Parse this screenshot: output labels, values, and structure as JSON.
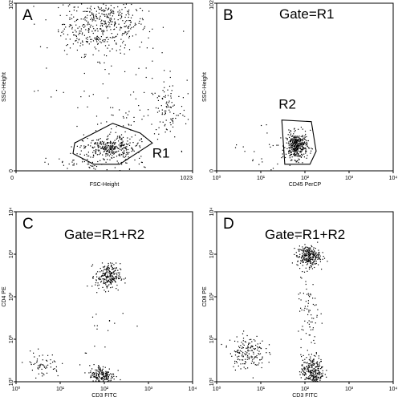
{
  "chart_data": [
    {
      "id": "A",
      "type": "scatter",
      "panel_label": "A",
      "gate_label": "",
      "xlabel": "FSC-Height",
      "ylabel": "SSC-Height",
      "xscale": "linear",
      "yscale": "linear",
      "xlim": [
        0,
        1023
      ],
      "ylim": [
        0,
        1023
      ],
      "x_ticks": [
        {
          "v": 0,
          "label": "0"
        },
        {
          "v": 1023,
          "label": "1023"
        }
      ],
      "y_ticks": [
        {
          "v": 0,
          "label": "0"
        },
        {
          "v": 1023,
          "label": "1023"
        }
      ],
      "clusters": [
        {
          "cx": 520,
          "cy": 900,
          "sx": 120,
          "sy": 90,
          "n": 380
        },
        {
          "cx": 380,
          "cy": 830,
          "sx": 90,
          "sy": 80,
          "n": 70
        },
        {
          "cx": 610,
          "cy": 130,
          "sx": 90,
          "sy": 140,
          "n": 120
        },
        {
          "cx": 880,
          "cy": 370,
          "sx": 55,
          "sy": 90,
          "n": 90
        },
        {
          "cx": 540,
          "cy": 140,
          "sx": 75,
          "sy": 30,
          "n": 260
        },
        {
          "cx": 400,
          "cy": 40,
          "sx": 120,
          "sy": 30,
          "n": 60
        },
        {
          "cx": 620,
          "cy": 500,
          "sx": 300,
          "sy": 250,
          "n": 80
        }
      ],
      "regions": [
        {
          "name": "R1",
          "label": "R1",
          "polygon": [
            [
              340,
              170
            ],
            [
              560,
              290
            ],
            [
              720,
              230
            ],
            [
              790,
              170
            ],
            [
              600,
              40
            ],
            [
              450,
              40
            ],
            [
              330,
              105
            ]
          ],
          "label_at": [
            840,
            80
          ]
        }
      ]
    },
    {
      "id": "B",
      "type": "scatter",
      "panel_label": "B",
      "gate_label": "Gate=R1",
      "xlabel": "CD45 PerCP",
      "ylabel": "SSC-Height",
      "xscale": "log",
      "yscale": "linear",
      "xlim": [
        1,
        10000
      ],
      "ylim": [
        0,
        1023
      ],
      "x_ticks": [
        {
          "v": 1,
          "label": "10⁰"
        },
        {
          "v": 10,
          "label": "10¹"
        },
        {
          "v": 100,
          "label": "10²"
        },
        {
          "v": 1000,
          "label": "10³"
        },
        {
          "v": 10000,
          "label": "10⁴"
        }
      ],
      "y_ticks": [
        {
          "v": 0,
          "label": "0"
        },
        {
          "v": 1023,
          "label": "1023"
        }
      ],
      "clusters": [
        {
          "cx": 65,
          "cy": 150,
          "sx": 0.12,
          "sy": 40,
          "n": 380,
          "logx": true
        },
        {
          "cx": 15,
          "cy": 140,
          "sx": 0.45,
          "sy": 90,
          "n": 25,
          "logx": true
        }
      ],
      "regions": [
        {
          "name": "R2",
          "label": "R2",
          "polygon": [
            [
              30,
              310
            ],
            [
              140,
              300
            ],
            [
              180,
              120
            ],
            [
              130,
              40
            ],
            [
              35,
              40
            ]
          ],
          "label_at": [
            40,
            380
          ]
        }
      ]
    },
    {
      "id": "C",
      "type": "scatter",
      "panel_label": "C",
      "gate_label": "Gate=R1+R2",
      "xlabel": "CD3 FITC",
      "ylabel": "CD4 PE",
      "xscale": "log",
      "yscale": "log",
      "xlim": [
        1,
        10000
      ],
      "ylim": [
        1,
        10000
      ],
      "x_ticks": [
        {
          "v": 1,
          "label": "10⁰"
        },
        {
          "v": 10,
          "label": "10¹"
        },
        {
          "v": 100,
          "label": "10²"
        },
        {
          "v": 1000,
          "label": "10³"
        },
        {
          "v": 10000,
          "label": "10⁴"
        }
      ],
      "y_ticks": [
        {
          "v": 1,
          "label": "10⁰"
        },
        {
          "v": 10,
          "label": "10¹"
        },
        {
          "v": 100,
          "label": "10²"
        },
        {
          "v": 1000,
          "label": "10³"
        },
        {
          "v": 10000,
          "label": "10⁴"
        }
      ],
      "clusters": [
        {
          "cx": 120,
          "cy": 300,
          "sx": 0.14,
          "sy": 0.15,
          "n": 220,
          "logx": true,
          "logy": true
        },
        {
          "cx": 90,
          "cy": 1.4,
          "sx": 0.15,
          "sy": 0.12,
          "n": 180,
          "logx": true,
          "logy": true
        },
        {
          "cx": 4,
          "cy": 2.5,
          "sx": 0.2,
          "sy": 0.15,
          "n": 60,
          "logx": true,
          "logy": true
        },
        {
          "cx": 80,
          "cy": 20,
          "sx": 0.4,
          "sy": 0.6,
          "n": 20,
          "logx": true,
          "logy": true
        }
      ],
      "regions": []
    },
    {
      "id": "D",
      "type": "scatter",
      "panel_label": "D",
      "gate_label": "Gate=R1+R2",
      "xlabel": "CD3 FITC",
      "ylabel": "CD8 PE",
      "xscale": "log",
      "yscale": "log",
      "xlim": [
        1,
        10000
      ],
      "ylim": [
        1,
        10000
      ],
      "x_ticks": [
        {
          "v": 1,
          "label": "10⁰"
        },
        {
          "v": 10,
          "label": "10¹"
        },
        {
          "v": 100,
          "label": "10²"
        },
        {
          "v": 1000,
          "label": "10³"
        },
        {
          "v": 10000,
          "label": "10⁴"
        }
      ],
      "y_ticks": [
        {
          "v": 1,
          "label": "10⁰"
        },
        {
          "v": 10,
          "label": "10¹"
        },
        {
          "v": 100,
          "label": "10²"
        },
        {
          "v": 1000,
          "label": "10³"
        },
        {
          "v": 10000,
          "label": "10⁴"
        }
      ],
      "clusters": [
        {
          "cx": 120,
          "cy": 900,
          "sx": 0.13,
          "sy": 0.12,
          "n": 260,
          "logx": true,
          "logy": true
        },
        {
          "cx": 150,
          "cy": 1.8,
          "sx": 0.13,
          "sy": 0.18,
          "n": 260,
          "logx": true,
          "logy": true
        },
        {
          "cx": 5,
          "cy": 5,
          "sx": 0.2,
          "sy": 0.2,
          "n": 160,
          "logx": true,
          "logy": true
        },
        {
          "cx": 120,
          "cy": 50,
          "sx": 0.12,
          "sy": 0.55,
          "n": 80,
          "logx": true,
          "logy": true
        }
      ],
      "regions": []
    }
  ]
}
